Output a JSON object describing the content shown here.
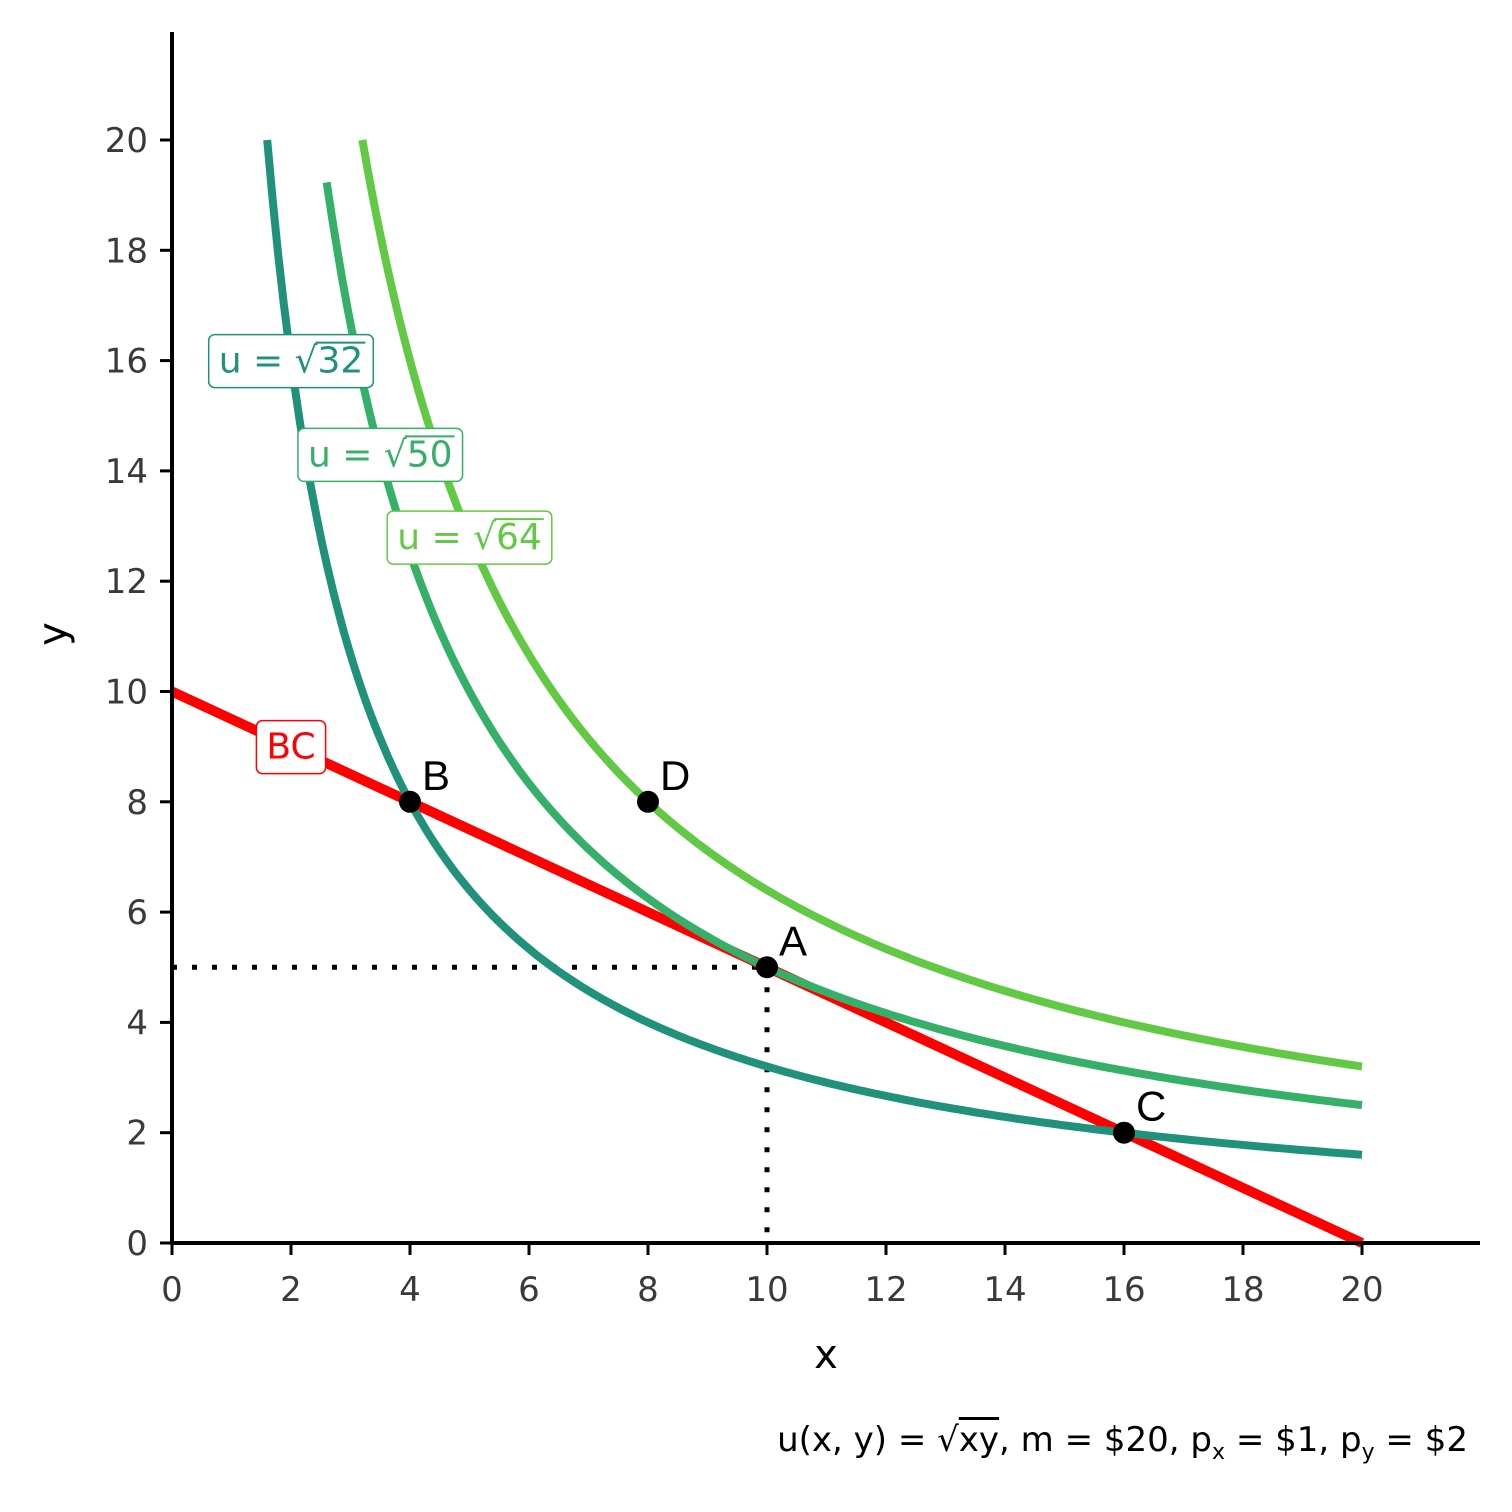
{
  "chart_data": {
    "type": "line",
    "title": "",
    "xlabel": "x",
    "ylabel": "y",
    "xlim": [
      0,
      22
    ],
    "ylim": [
      0,
      22
    ],
    "x_ticks": [
      0,
      2,
      4,
      6,
      8,
      10,
      12,
      14,
      16,
      18,
      20
    ],
    "y_ticks": [
      0,
      2,
      4,
      6,
      8,
      10,
      12,
      14,
      16,
      18,
      20
    ],
    "grid": false,
    "series": [
      {
        "name": "BC",
        "kind": "budget",
        "color": "#ff0000",
        "points": [
          [
            0,
            10
          ],
          [
            20,
            0
          ]
        ]
      },
      {
        "name": "u = √32",
        "kind": "indifference",
        "k": 32,
        "x_range": [
          1.6,
          20
        ],
        "color": "#20917a"
      },
      {
        "name": "u = √50",
        "kind": "indifference",
        "k": 50,
        "x_range": [
          2.6,
          20
        ],
        "color": "#35b068"
      },
      {
        "name": "u = √64",
        "kind": "indifference",
        "k": 64,
        "x_range": [
          3.2,
          20
        ],
        "color": "#62c945"
      }
    ],
    "points": [
      {
        "label": "A",
        "x": 10,
        "y": 5
      },
      {
        "label": "B",
        "x": 4,
        "y": 8
      },
      {
        "label": "C",
        "x": 16,
        "y": 2
      },
      {
        "label": "D",
        "x": 8,
        "y": 8
      }
    ],
    "guides": {
      "x": 10,
      "y": 5
    },
    "curve_labels": [
      {
        "text": "u = √32",
        "prefix": "u = √",
        "radicand": "32",
        "x": 2.0,
        "y": 16,
        "color": "#20917a"
      },
      {
        "text": "u = √50",
        "prefix": "u = √",
        "radicand": "50",
        "x": 3.5,
        "y": 14.3,
        "color": "#35b068"
      },
      {
        "text": "u = √64",
        "prefix": "u = √",
        "radicand": "64",
        "x": 5.0,
        "y": 12.8,
        "color": "#62c945"
      },
      {
        "text": "BC",
        "prefix": "BC",
        "radicand": "",
        "x": 2.0,
        "y": 9.0,
        "color": "#ff0000"
      }
    ]
  },
  "caption": {
    "u_def": "u(x, y) = ",
    "radicand": "xy",
    "budget_text": ", m = $20, p",
    "px_sub": "x",
    "px_val": " = $1, p",
    "py_sub": "y",
    "py_val": " = $2"
  }
}
